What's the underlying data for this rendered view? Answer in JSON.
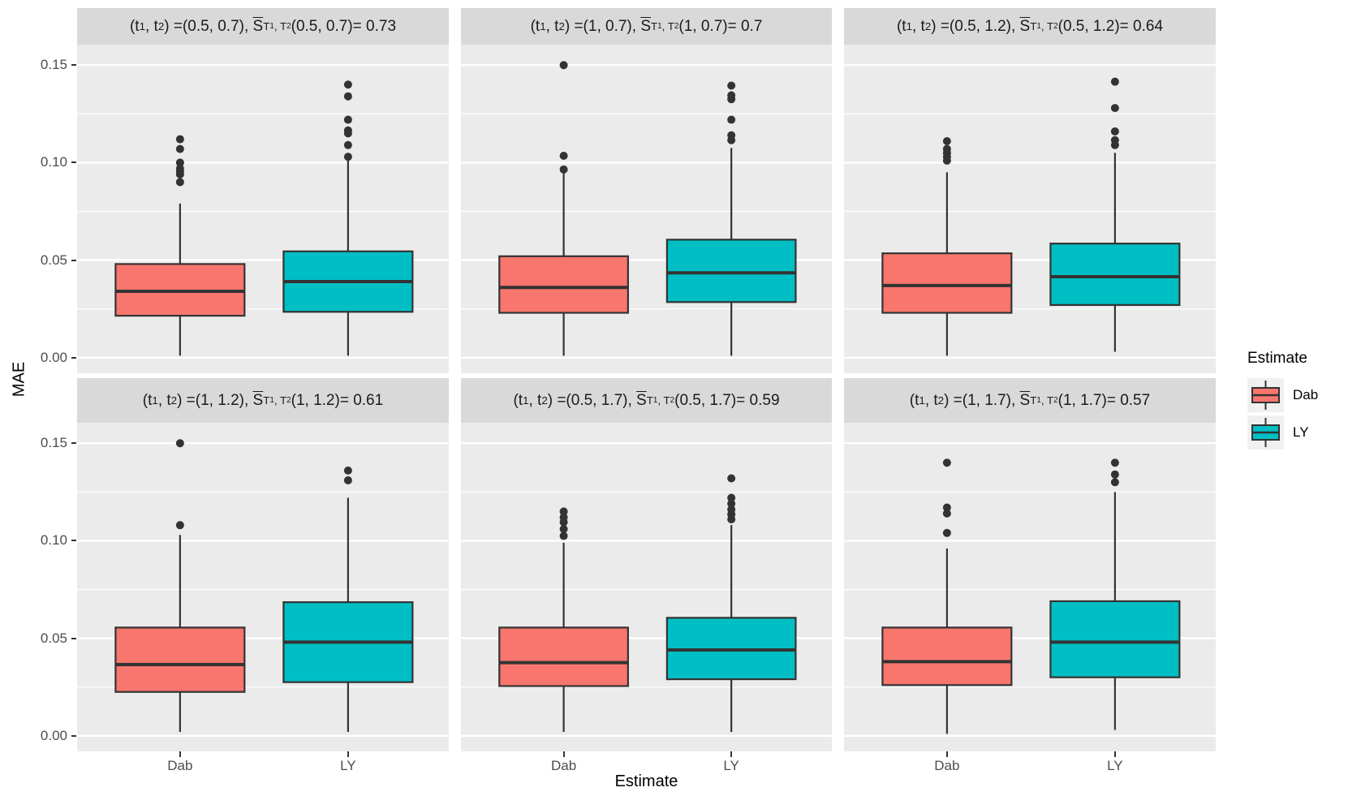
{
  "figure": {
    "y_axis_title": "MAE",
    "x_axis_title": "Estimate",
    "y_ticks": [
      {
        "label": "0.15",
        "value": 0.15
      },
      {
        "label": "0.10",
        "value": 0.1
      },
      {
        "label": "0.05",
        "value": 0.05
      },
      {
        "label": "0.00",
        "value": 0.0
      }
    ],
    "y_minor": [
      0.025,
      0.075,
      0.125
    ],
    "x_categories": [
      "Dab",
      "LY"
    ],
    "legend": {
      "title": "Estimate",
      "items": [
        {
          "label": "Dab",
          "color": "#F8766D"
        },
        {
          "label": "LY",
          "color": "#00BFC4"
        }
      ]
    },
    "colors": {
      "panel_bg": "#EBEBEB",
      "strip_bg": "#D9D9D9",
      "gridline": "#FFFFFF",
      "box_stroke": "#333333",
      "axis_text": "#4D4D4D",
      "key_bg": "#F0F0F0"
    },
    "strip_text": {
      "lhs": [
        "(t",
        "1",
        ", t",
        "2",
        ") = "
      ],
      "sep": ",  ",
      "sbar": "S",
      "s_sub": [
        "T",
        "1",
        ", T",
        "2"
      ],
      "eq": " = "
    }
  },
  "chart_data": {
    "type": "boxplot",
    "facet_grid": [
      2,
      3
    ],
    "ylabel": "MAE",
    "xlabel": "Estimate",
    "categories": [
      "Dab",
      "LY"
    ],
    "ylim": [
      -0.008,
      0.1605
    ],
    "legend_position": "right",
    "facets": [
      {
        "args": "(0.5, 0.7)",
        "sbar_value": "0.73",
        "boxes": [
          {
            "group": "Dab",
            "whisker_low": 0.001,
            "q1": 0.0215,
            "median": 0.034,
            "q3": 0.048,
            "whisker_high": 0.079,
            "outliers": [
              0.09,
              0.094,
              0.0955,
              0.097,
              0.1,
              0.107,
              0.112
            ]
          },
          {
            "group": "LY",
            "whisker_low": 0.001,
            "q1": 0.0235,
            "median": 0.039,
            "q3": 0.0545,
            "whisker_high": 0.101,
            "outliers": [
              0.103,
              0.109,
              0.115,
              0.1165,
              0.122,
              0.134,
              0.14
            ]
          }
        ]
      },
      {
        "args": "(1, 0.7)",
        "sbar_value": "0.7",
        "boxes": [
          {
            "group": "Dab",
            "whisker_low": 0.001,
            "q1": 0.023,
            "median": 0.036,
            "q3": 0.052,
            "whisker_high": 0.0945,
            "outliers": [
              0.0965,
              0.1035,
              0.15
            ]
          },
          {
            "group": "LY",
            "whisker_low": 0.001,
            "q1": 0.0285,
            "median": 0.0435,
            "q3": 0.0605,
            "whisker_high": 0.1075,
            "outliers": [
              0.1115,
              0.114,
              0.122,
              0.1325,
              0.1345,
              0.1395
            ]
          }
        ]
      },
      {
        "args": "(0.5, 1.2)",
        "sbar_value": "0.64",
        "boxes": [
          {
            "group": "Dab",
            "whisker_low": 0.001,
            "q1": 0.023,
            "median": 0.037,
            "q3": 0.0535,
            "whisker_high": 0.095,
            "outliers": [
              0.101,
              0.103,
              0.105,
              0.107,
              0.111
            ]
          },
          {
            "group": "LY",
            "whisker_low": 0.003,
            "q1": 0.027,
            "median": 0.0415,
            "q3": 0.0585,
            "whisker_high": 0.105,
            "outliers": [
              0.109,
              0.1115,
              0.116,
              0.128,
              0.1415
            ]
          }
        ]
      },
      {
        "args": "(1, 1.2)",
        "sbar_value": "0.61",
        "boxes": [
          {
            "group": "Dab",
            "whisker_low": 0.002,
            "q1": 0.0225,
            "median": 0.0365,
            "q3": 0.0555,
            "whisker_high": 0.103,
            "outliers": [
              0.108,
              0.15
            ]
          },
          {
            "group": "LY",
            "whisker_low": 0.002,
            "q1": 0.0275,
            "median": 0.048,
            "q3": 0.0685,
            "whisker_high": 0.122,
            "outliers": [
              0.131,
              0.136
            ]
          }
        ]
      },
      {
        "args": "(0.5, 1.7)",
        "sbar_value": "0.59",
        "boxes": [
          {
            "group": "Dab",
            "whisker_low": 0.002,
            "q1": 0.0255,
            "median": 0.0375,
            "q3": 0.0555,
            "whisker_high": 0.099,
            "outliers": [
              0.1025,
              0.106,
              0.1095,
              0.112,
              0.115
            ]
          },
          {
            "group": "LY",
            "whisker_low": 0.002,
            "q1": 0.029,
            "median": 0.044,
            "q3": 0.0605,
            "whisker_high": 0.108,
            "outliers": [
              0.111,
              0.1135,
              0.116,
              0.119,
              0.122,
              0.132
            ]
          }
        ]
      },
      {
        "args": "(1, 1.7)",
        "sbar_value": "0.57",
        "boxes": [
          {
            "group": "Dab",
            "whisker_low": 0.001,
            "q1": 0.026,
            "median": 0.038,
            "q3": 0.0555,
            "whisker_high": 0.096,
            "outliers": [
              0.104,
              0.114,
              0.117,
              0.14
            ]
          },
          {
            "group": "LY",
            "whisker_low": 0.003,
            "q1": 0.03,
            "median": 0.048,
            "q3": 0.069,
            "whisker_high": 0.125,
            "outliers": [
              0.13,
              0.134,
              0.14
            ]
          }
        ]
      }
    ]
  }
}
